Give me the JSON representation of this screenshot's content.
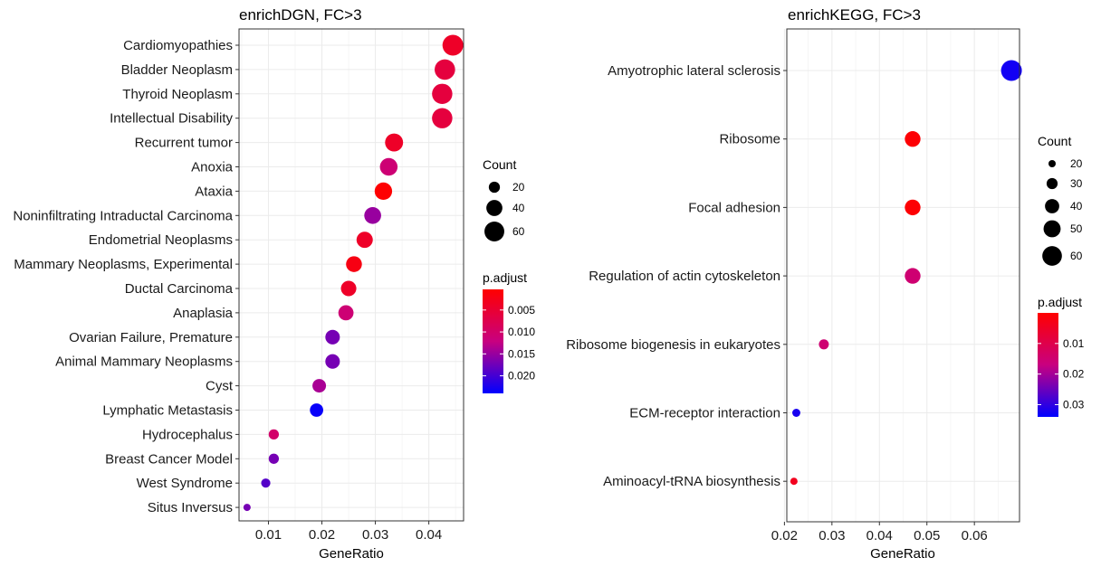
{
  "chart_data": [
    {
      "type": "scatter",
      "title": "enrichDGN, FC>3",
      "xlabel": "GeneRatio",
      "ylabel": "",
      "xlim": [
        0.0045,
        0.0465
      ],
      "xticks": [
        0.01,
        0.02,
        0.03,
        0.04
      ],
      "xtick_labels": [
        "0.01",
        "0.02",
        "0.03",
        "0.04"
      ],
      "grid": true,
      "legend_position": "right",
      "categories": [
        "Cardiomyopathies",
        "Bladder Neoplasm",
        "Thyroid Neoplasm",
        "Intellectual Disability",
        "Recurrent tumor",
        "Anoxia",
        "Ataxia",
        "Noninfiltrating Intraductal Carcinoma",
        "Endometrial Neoplasms",
        "Mammary Neoplasms, Experimental",
        "Ductal Carcinoma",
        "Anaplasia",
        "Ovarian Failure, Premature",
        "Animal Mammary Neoplasms",
        "Cyst",
        "Lymphatic Metastasis",
        "Hydrocephalus",
        "Breast Cancer Model",
        "West Syndrome",
        "Situs Inversus"
      ],
      "x": [
        0.0445,
        0.043,
        0.0425,
        0.0425,
        0.0335,
        0.0325,
        0.0315,
        0.0295,
        0.028,
        0.026,
        0.025,
        0.0245,
        0.022,
        0.022,
        0.0195,
        0.019,
        0.011,
        0.011,
        0.0095,
        0.006
      ],
      "count": [
        66,
        64,
        63,
        63,
        50,
        48,
        47,
        44,
        41,
        39,
        37,
        36,
        33,
        33,
        29,
        28,
        17,
        17,
        14,
        9
      ],
      "p_adjust": [
        0.004,
        0.006,
        0.006,
        0.006,
        0.004,
        0.011,
        0.0005,
        0.015,
        0.004,
        0.002,
        0.004,
        0.011,
        0.017,
        0.017,
        0.014,
        0.0235,
        0.01,
        0.017,
        0.019,
        0.017
      ],
      "size_legend": {
        "title": "Count",
        "values": [
          20,
          40,
          60
        ],
        "labels": [
          "20",
          "40",
          "60"
        ]
      },
      "color_legend": {
        "title": "p.adjust",
        "range": [
          0.0003,
          0.024
        ],
        "ticks": [
          0.005,
          0.01,
          0.015,
          0.02
        ],
        "labels": [
          "0.005",
          "0.010",
          "0.015",
          "0.020"
        ],
        "low_color": "#ff0000",
        "high_color": "#0000ff"
      }
    },
    {
      "type": "scatter",
      "title": "enrichKEGG, FC>3",
      "xlabel": "GeneRatio",
      "ylabel": "",
      "xlim": [
        0.0205,
        0.0695
      ],
      "xticks": [
        0.02,
        0.03,
        0.04,
        0.05,
        0.06
      ],
      "xtick_labels": [
        "0.02",
        "0.03",
        "0.04",
        "0.05",
        "0.06"
      ],
      "grid": true,
      "legend_position": "right",
      "categories": [
        "Amyotrophic lateral sclerosis",
        "Ribosome",
        "Focal adhesion",
        "Regulation of actin cytoskeleton",
        "Ribosome biogenesis in eukaryotes",
        "ECM-receptor interaction",
        "Aminoacyl-tRNA biosynthesis"
      ],
      "x": [
        0.0678,
        0.047,
        0.047,
        0.047,
        0.0283,
        0.0225,
        0.022
      ],
      "count": [
        65,
        45,
        45,
        45,
        27,
        22,
        20
      ],
      "p_adjust": [
        0.0325,
        0.0005,
        0.0005,
        0.015,
        0.015,
        0.032,
        0.004
      ],
      "size_legend": {
        "title": "Count",
        "values": [
          20,
          30,
          40,
          50,
          60
        ],
        "labels": [
          "20",
          "30",
          "40",
          "50",
          "60"
        ]
      },
      "color_legend": {
        "title": "p.adjust",
        "range": [
          0.0,
          0.034
        ],
        "ticks": [
          0.01,
          0.02,
          0.03
        ],
        "labels": [
          "0.01",
          "0.02",
          "0.03"
        ],
        "low_color": "#ff0000",
        "high_color": "#0000ff"
      }
    }
  ]
}
